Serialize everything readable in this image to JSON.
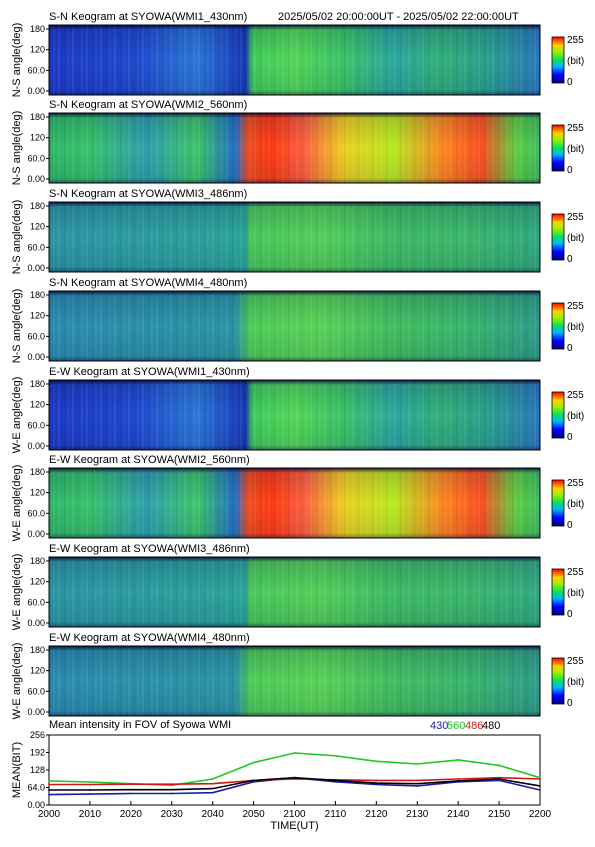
{
  "header": {
    "time_range": "2025/05/02 20:00:00UT - 2025/05/02 22:00:00UT"
  },
  "colorbar": {
    "max_label": "255",
    "unit_label": "(bit)",
    "min_label": "0"
  },
  "keograms": [
    {
      "title": "S-N Keogram at SYOWA(WMI1_430nm)",
      "ylabel": "N-S angle(deg)",
      "yticks": [
        "180",
        "120",
        "60.0",
        "0.00"
      ],
      "palette": "blue430"
    },
    {
      "title": "S-N Keogram at SYOWA(WMI2_560nm)",
      "ylabel": "N-S angle(deg)",
      "yticks": [
        "180",
        "120",
        "60.0",
        "0.00"
      ],
      "palette": "green560"
    },
    {
      "title": "S-N Keogram at SYOWA(WMI3_486nm)",
      "ylabel": "N-S angle(deg)",
      "yticks": [
        "180",
        "120",
        "60.0",
        "0.00"
      ],
      "palette": "dim486"
    },
    {
      "title": "S-N Keogram at SYOWA(WMI4_480nm)",
      "ylabel": "N-S angle(deg)",
      "yticks": [
        "180",
        "120",
        "60.0",
        "0.00"
      ],
      "palette": "dim480"
    },
    {
      "title": "E-W Keogram at SYOWA(WMI1_430nm)",
      "ylabel": "W-E angle(deg)",
      "yticks": [
        "180",
        "120",
        "60.0",
        "0.00"
      ],
      "palette": "blue430"
    },
    {
      "title": "E-W Keogram at SYOWA(WMI2_560nm)",
      "ylabel": "W-E angle(deg)",
      "yticks": [
        "180",
        "120",
        "60.0",
        "0.00"
      ],
      "palette": "green560"
    },
    {
      "title": "E-W Keogram at SYOWA(WMI3_486nm)",
      "ylabel": "W-E angle(deg)",
      "yticks": [
        "180",
        "120",
        "60.0",
        "0.00"
      ],
      "palette": "dim486"
    },
    {
      "title": "E-W Keogram at SYOWA(WMI4_480nm)",
      "ylabel": "W-E angle(deg)",
      "yticks": [
        "180",
        "120",
        "60.0",
        "0.00"
      ],
      "palette": "dim480"
    }
  ],
  "colors": {
    "s430": "#1a1aa8",
    "s560": "#22c822",
    "s486": "#d01818",
    "s480": "#000000"
  },
  "chart_data": {
    "type": "line",
    "title": "Mean intensity in FOV of Syowa WMI",
    "xlabel": "TIME(UT)",
    "ylabel": "MEAN(BIT)",
    "x": [
      "2000",
      "2010",
      "2020",
      "2030",
      "2040",
      "2050",
      "2100",
      "2110",
      "2120",
      "2130",
      "2140",
      "2150",
      "2200"
    ],
    "xticks": [
      "2000",
      "2010",
      "2020",
      "2030",
      "2040",
      "2050",
      "2100",
      "2110",
      "2120",
      "2130",
      "2140",
      "2150",
      "2200"
    ],
    "yticks": [
      "256",
      "192",
      "128",
      "64.0",
      "0.00"
    ],
    "ylim": [
      0,
      256
    ],
    "legend": [
      "430",
      "560",
      "486",
      "480"
    ],
    "legend_placement": "top-right",
    "series": [
      {
        "name": "430",
        "color": "#1a1aa8",
        "values": [
          38,
          40,
          42,
          42,
          45,
          85,
          100,
          85,
          75,
          70,
          85,
          90,
          55
        ]
      },
      {
        "name": "560",
        "color": "#22c822",
        "values": [
          88,
          84,
          78,
          72,
          95,
          155,
          190,
          180,
          160,
          150,
          165,
          145,
          100
        ]
      },
      {
        "name": "486",
        "color": "#d01818",
        "values": [
          75,
          75,
          76,
          76,
          78,
          90,
          95,
          92,
          90,
          90,
          95,
          100,
          95
        ]
      },
      {
        "name": "480",
        "color": "#000000",
        "values": [
          55,
          55,
          56,
          56,
          60,
          90,
          100,
          90,
          80,
          78,
          88,
          95,
          70
        ]
      }
    ]
  }
}
